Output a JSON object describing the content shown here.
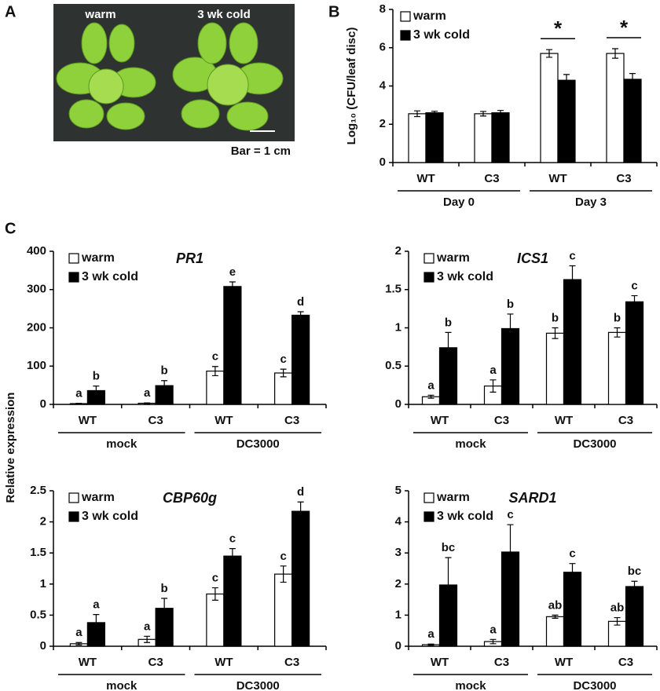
{
  "panel_labels": [
    "A",
    "B",
    "C"
  ],
  "photo": {
    "labels": [
      "warm",
      "3 wk cold"
    ],
    "scale_bar": "Bar = 1 cm"
  },
  "shared_y_label": "Relative expression",
  "chart_data": [
    {
      "type": "bar",
      "y_label": "Log₁₀ (CFU/leaf disc)",
      "legend": "upper left",
      "categories": [
        "WT",
        "C3",
        "WT",
        "C3"
      ],
      "groups": [
        "Day 0",
        "Day 3"
      ],
      "ylim": [
        0,
        8
      ],
      "yticks": [
        0,
        2,
        4,
        6,
        8
      ],
      "significance": [
        null,
        null,
        "*",
        "*"
      ],
      "series": [
        {
          "name": "warm",
          "color": "#ffffff",
          "values": [
            2.55,
            2.55,
            5.7,
            5.7
          ],
          "errors": [
            0.15,
            0.12,
            0.2,
            0.25
          ]
        },
        {
          "name": "3 wk cold",
          "color": "#000000",
          "values": [
            2.6,
            2.6,
            4.3,
            4.35
          ],
          "errors": [
            0.08,
            0.12,
            0.3,
            0.3
          ]
        }
      ]
    },
    {
      "type": "bar",
      "title": "PR1",
      "legend": "upper left",
      "categories": [
        "WT",
        "C3",
        "WT",
        "C3"
      ],
      "groups": [
        "mock",
        "DC3000"
      ],
      "ylim": [
        0,
        400
      ],
      "yticks": [
        0,
        100,
        200,
        300,
        400
      ],
      "series": [
        {
          "name": "warm",
          "color": "#ffffff",
          "values": [
            2,
            3,
            87,
            82
          ],
          "errors": [
            1,
            1,
            12,
            10
          ],
          "labels": [
            "a",
            "a",
            "c",
            "c"
          ]
        },
        {
          "name": "3 wk cold",
          "color": "#000000",
          "values": [
            36,
            49,
            308,
            233
          ],
          "errors": [
            12,
            13,
            12,
            9
          ],
          "labels": [
            "b",
            "b",
            "e",
            "d"
          ]
        }
      ]
    },
    {
      "type": "bar",
      "title": "ICS1",
      "legend": "upper left",
      "categories": [
        "WT",
        "C3",
        "WT",
        "C3"
      ],
      "groups": [
        "mock",
        "DC3000"
      ],
      "ylim": [
        0,
        2
      ],
      "yticks": [
        0,
        0.5,
        1,
        1.5,
        2
      ],
      "series": [
        {
          "name": "warm",
          "color": "#ffffff",
          "values": [
            0.1,
            0.24,
            0.93,
            0.94
          ],
          "errors": [
            0.02,
            0.08,
            0.07,
            0.06
          ],
          "labels": [
            "a",
            "a",
            "b",
            "b"
          ]
        },
        {
          "name": "3 wk cold",
          "color": "#000000",
          "values": [
            0.74,
            0.99,
            1.63,
            1.34
          ],
          "errors": [
            0.2,
            0.19,
            0.18,
            0.08
          ],
          "labels": [
            "b",
            "b",
            "c",
            "c"
          ]
        }
      ]
    },
    {
      "type": "bar",
      "title": "CBP60g",
      "legend": "upper left",
      "categories": [
        "WT",
        "C3",
        "WT",
        "C3"
      ],
      "groups": [
        "mock",
        "DC3000"
      ],
      "ylim": [
        0,
        2.5
      ],
      "yticks": [
        0,
        0.5,
        1,
        1.5,
        2,
        2.5
      ],
      "series": [
        {
          "name": "warm",
          "color": "#ffffff",
          "values": [
            0.04,
            0.11,
            0.84,
            1.16
          ],
          "errors": [
            0.02,
            0.05,
            0.1,
            0.13
          ],
          "labels": [
            "a",
            "a",
            "c",
            "c"
          ]
        },
        {
          "name": "3 wk cold",
          "color": "#000000",
          "values": [
            0.38,
            0.61,
            1.45,
            2.17
          ],
          "errors": [
            0.13,
            0.16,
            0.12,
            0.15
          ],
          "labels": [
            "a",
            "b",
            "c",
            "d"
          ]
        }
      ]
    },
    {
      "type": "bar",
      "title": "SARD1",
      "legend": "upper left",
      "categories": [
        "WT",
        "C3",
        "WT",
        "C3"
      ],
      "groups": [
        "mock",
        "DC3000"
      ],
      "ylim": [
        0,
        5
      ],
      "yticks": [
        0,
        1,
        2,
        3,
        4,
        5
      ],
      "series": [
        {
          "name": "warm",
          "color": "#ffffff",
          "values": [
            0.05,
            0.15,
            0.95,
            0.8
          ],
          "errors": [
            0.02,
            0.07,
            0.05,
            0.12
          ],
          "labels": [
            "a",
            "a",
            "ab",
            "ab"
          ]
        },
        {
          "name": "3 wk cold",
          "color": "#000000",
          "values": [
            1.97,
            3.03,
            2.38,
            1.92
          ],
          "errors": [
            0.88,
            0.88,
            0.28,
            0.17
          ],
          "labels": [
            "bc",
            "c",
            "c",
            "bc"
          ]
        }
      ]
    }
  ]
}
